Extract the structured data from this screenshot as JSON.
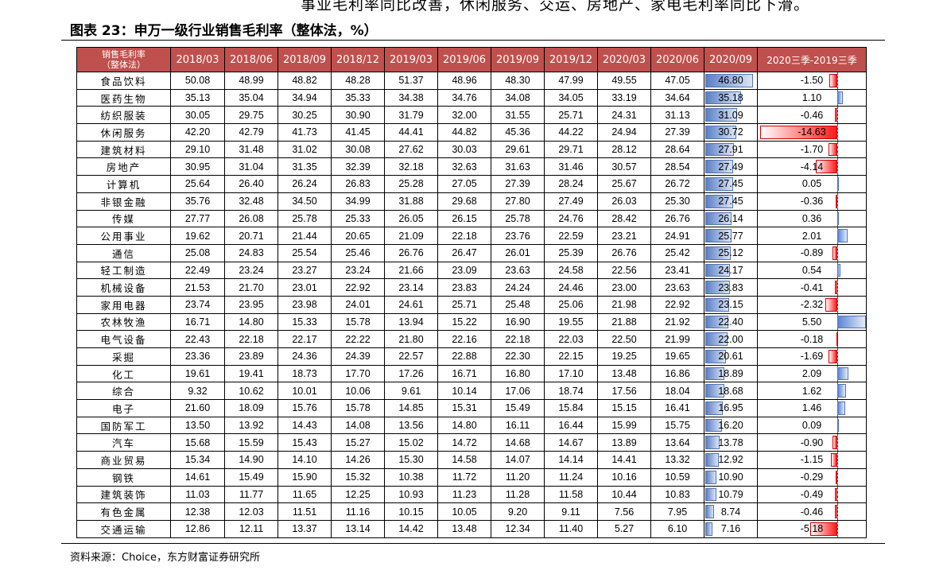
{
  "top_text": "事业毛利率同比改善，休闲服务、交运、房地产、家电毛利率同比下滑。",
  "title": "图表 23：申万一级行业销售毛利率（整体法，%）",
  "source": "资料来源：Choice，东方财富证券研究所",
  "colors": {
    "header_bg": "#c0504d",
    "bar_blue": "#4f81bd",
    "neg_red": "#ff0000"
  },
  "header_line1": "销售毛利率",
  "header_line2": "（整体法）",
  "columns": [
    "2018/03",
    "2018/06",
    "2018/09",
    "2018/12",
    "2019/03",
    "2019/06",
    "2019/09",
    "2019/12",
    "2020/03",
    "2020/06",
    "2020/09",
    "2020三季-2019三季"
  ],
  "rows": [
    {
      "name": "食品饮料",
      "v": [
        "50.08",
        "48.99",
        "48.82",
        "48.28",
        "51.37",
        "48.96",
        "48.30",
        "47.99",
        "49.55",
        "47.05",
        "46.80",
        "-1.50"
      ]
    },
    {
      "name": "医药生物",
      "v": [
        "35.13",
        "35.04",
        "34.94",
        "35.33",
        "34.38",
        "34.76",
        "34.08",
        "34.05",
        "33.19",
        "34.64",
        "35.18",
        "1.10"
      ]
    },
    {
      "name": "纺织服装",
      "v": [
        "30.05",
        "29.75",
        "30.25",
        "30.90",
        "31.79",
        "32.00",
        "31.55",
        "25.71",
        "24.31",
        "31.13",
        "31.09",
        "-0.46"
      ]
    },
    {
      "name": "休闲服务",
      "v": [
        "42.20",
        "42.79",
        "41.73",
        "41.45",
        "44.41",
        "44.82",
        "45.36",
        "44.22",
        "24.94",
        "27.39",
        "30.72",
        "-14.63"
      ]
    },
    {
      "name": "建筑材料",
      "v": [
        "29.10",
        "31.48",
        "31.02",
        "30.08",
        "27.62",
        "30.03",
        "29.61",
        "29.71",
        "28.12",
        "28.64",
        "27.91",
        "-1.70"
      ]
    },
    {
      "name": "房地产",
      "v": [
        "30.95",
        "31.04",
        "31.35",
        "32.39",
        "32.18",
        "32.63",
        "31.63",
        "31.46",
        "30.57",
        "28.54",
        "27.49",
        "-4.14"
      ]
    },
    {
      "name": "计算机",
      "v": [
        "25.64",
        "26.40",
        "26.24",
        "26.83",
        "25.28",
        "27.05",
        "27.39",
        "28.24",
        "25.67",
        "26.72",
        "27.45",
        "0.05"
      ]
    },
    {
      "name": "非银金融",
      "v": [
        "35.76",
        "32.48",
        "34.50",
        "34.99",
        "31.88",
        "29.68",
        "27.80",
        "27.49",
        "26.03",
        "25.30",
        "27.45",
        "-0.36"
      ]
    },
    {
      "name": "传媒",
      "v": [
        "27.77",
        "26.08",
        "25.78",
        "25.33",
        "26.05",
        "26.15",
        "25.78",
        "24.76",
        "28.42",
        "26.76",
        "26.14",
        "0.36"
      ]
    },
    {
      "name": "公用事业",
      "v": [
        "19.62",
        "20.71",
        "21.44",
        "20.65",
        "21.09",
        "22.18",
        "23.76",
        "22.59",
        "23.21",
        "24.91",
        "25.77",
        "2.01"
      ]
    },
    {
      "name": "通信",
      "v": [
        "25.08",
        "24.83",
        "25.54",
        "25.46",
        "26.76",
        "26.47",
        "26.01",
        "25.39",
        "26.76",
        "25.42",
        "25.12",
        "-0.89"
      ]
    },
    {
      "name": "轻工制造",
      "v": [
        "22.49",
        "23.24",
        "23.27",
        "23.24",
        "21.66",
        "23.09",
        "23.63",
        "24.58",
        "22.56",
        "23.41",
        "24.17",
        "0.54"
      ]
    },
    {
      "name": "机械设备",
      "v": [
        "21.53",
        "21.70",
        "23.01",
        "22.92",
        "23.14",
        "23.83",
        "24.24",
        "24.46",
        "23.00",
        "23.63",
        "23.83",
        "-0.41"
      ]
    },
    {
      "name": "家用电器",
      "v": [
        "23.74",
        "23.95",
        "23.98",
        "24.01",
        "24.61",
        "25.71",
        "25.48",
        "25.06",
        "21.98",
        "22.92",
        "23.15",
        "-2.32"
      ]
    },
    {
      "name": "农林牧渔",
      "v": [
        "16.71",
        "14.80",
        "15.33",
        "15.78",
        "13.94",
        "15.22",
        "16.90",
        "19.55",
        "21.88",
        "21.92",
        "22.40",
        "5.50"
      ]
    },
    {
      "name": "电气设备",
      "v": [
        "22.43",
        "22.18",
        "22.17",
        "22.22",
        "21.80",
        "22.16",
        "22.18",
        "22.03",
        "22.50",
        "21.99",
        "22.00",
        "-0.18"
      ]
    },
    {
      "name": "采掘",
      "v": [
        "23.36",
        "23.89",
        "24.36",
        "24.39",
        "22.57",
        "22.88",
        "22.30",
        "22.15",
        "19.25",
        "19.65",
        "20.61",
        "-1.69"
      ]
    },
    {
      "name": "化工",
      "v": [
        "19.61",
        "19.41",
        "18.73",
        "17.70",
        "17.26",
        "16.71",
        "16.80",
        "17.10",
        "13.48",
        "16.86",
        "18.89",
        "2.09"
      ]
    },
    {
      "name": "综合",
      "v": [
        "9.32",
        "10.62",
        "10.01",
        "10.06",
        "9.61",
        "10.14",
        "17.06",
        "18.74",
        "17.56",
        "18.04",
        "18.68",
        "1.62"
      ]
    },
    {
      "name": "电子",
      "v": [
        "21.60",
        "18.09",
        "15.76",
        "15.78",
        "14.85",
        "15.31",
        "15.49",
        "15.84",
        "15.15",
        "16.41",
        "16.95",
        "1.46"
      ]
    },
    {
      "name": "国防军工",
      "v": [
        "13.50",
        "13.92",
        "14.43",
        "14.08",
        "13.56",
        "14.80",
        "16.11",
        "16.44",
        "15.99",
        "15.75",
        "16.20",
        "0.09"
      ]
    },
    {
      "name": "汽车",
      "v": [
        "15.68",
        "15.59",
        "15.43",
        "15.27",
        "15.02",
        "14.72",
        "14.68",
        "14.67",
        "13.89",
        "13.64",
        "13.78",
        "-0.90"
      ]
    },
    {
      "name": "商业贸易",
      "v": [
        "15.34",
        "14.90",
        "14.10",
        "14.26",
        "15.30",
        "14.58",
        "14.07",
        "14.14",
        "14.41",
        "13.32",
        "12.92",
        "-1.15"
      ]
    },
    {
      "name": "钢铁",
      "v": [
        "14.61",
        "15.49",
        "15.90",
        "15.32",
        "10.38",
        "11.72",
        "11.20",
        "11.24",
        "10.16",
        "10.59",
        "10.90",
        "-0.29"
      ]
    },
    {
      "name": "建筑装饰",
      "v": [
        "11.03",
        "11.77",
        "11.65",
        "12.25",
        "10.93",
        "11.23",
        "11.28",
        "11.58",
        "10.44",
        "10.83",
        "10.79",
        "-0.49"
      ]
    },
    {
      "name": "有色金属",
      "v": [
        "12.38",
        "12.03",
        "11.51",
        "11.16",
        "10.15",
        "10.05",
        "9.20",
        "9.11",
        "7.56",
        "7.95",
        "8.74",
        "-0.46"
      ]
    },
    {
      "name": "交通运输",
      "v": [
        "12.86",
        "12.11",
        "13.37",
        "13.14",
        "14.42",
        "13.48",
        "12.34",
        "11.40",
        "5.27",
        "6.10",
        "7.16",
        "-5.18"
      ]
    }
  ]
}
